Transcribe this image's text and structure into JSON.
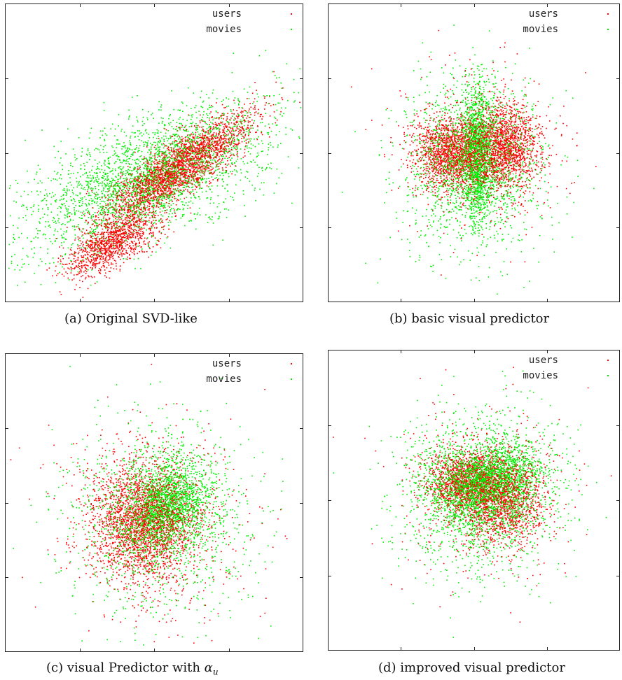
{
  "chart_data": [
    {
      "type": "scatter",
      "caption": "(a) Original SVD-like",
      "legend": {
        "position": "top-right",
        "entries": [
          "users",
          "movies"
        ]
      },
      "series": [
        {
          "name": "users",
          "color": "#ff0000",
          "clusters": [
            {
              "cx": 0.58,
              "cy": 0.55,
              "sx": 0.15,
              "sy": 0.04,
              "rot": -0.62,
              "n": 2600
            },
            {
              "cx": 0.36,
              "cy": 0.8,
              "sx": 0.09,
              "sy": 0.035,
              "rot": -0.55,
              "n": 1100
            }
          ]
        },
        {
          "name": "movies",
          "color": "#00ee00",
          "clusters": [
            {
              "cx": 0.48,
              "cy": 0.58,
              "sx": 0.22,
              "sy": 0.09,
              "rot": -0.45,
              "n": 2900
            }
          ]
        }
      ]
    },
    {
      "type": "scatter",
      "caption": "(b) basic visual predictor",
      "legend": {
        "position": "top-right",
        "entries": [
          "users",
          "movies"
        ]
      },
      "series": [
        {
          "name": "users",
          "color": "#ff0000",
          "clusters": [
            {
              "cx": 0.42,
              "cy": 0.5,
              "sx": 0.06,
              "sy": 0.06,
              "rot": 0,
              "n": 1500
            },
            {
              "cx": 0.6,
              "cy": 0.48,
              "sx": 0.06,
              "sy": 0.07,
              "rot": 0,
              "n": 1500
            },
            {
              "cx": 0.5,
              "cy": 0.5,
              "sx": 0.15,
              "sy": 0.15,
              "rot": 0,
              "n": 400
            }
          ]
        },
        {
          "name": "movies",
          "color": "#00ee00",
          "clusters": [
            {
              "cx": 0.51,
              "cy": 0.5,
              "sx": 0.025,
              "sy": 0.11,
              "rot": 0,
              "n": 1400
            },
            {
              "cx": 0.5,
              "cy": 0.53,
              "sx": 0.12,
              "sy": 0.14,
              "rot": 0,
              "n": 1700
            }
          ]
        }
      ]
    },
    {
      "type": "scatter",
      "caption": "(c) visual Predictor with ",
      "caption_symbol": "α",
      "caption_subscript": "u",
      "legend": {
        "position": "top-right",
        "entries": [
          "users",
          "movies"
        ]
      },
      "series": [
        {
          "name": "users",
          "color": "#ff0000",
          "clusters": [
            {
              "cx": 0.46,
              "cy": 0.56,
              "sx": 0.085,
              "sy": 0.1,
              "rot": 0,
              "n": 2200
            },
            {
              "cx": 0.5,
              "cy": 0.57,
              "sx": 0.17,
              "sy": 0.17,
              "rot": 0,
              "n": 600
            }
          ]
        },
        {
          "name": "movies",
          "color": "#00ee00",
          "clusters": [
            {
              "cx": 0.54,
              "cy": 0.51,
              "sx": 0.06,
              "sy": 0.08,
              "rot": 0.6,
              "n": 1700
            },
            {
              "cx": 0.52,
              "cy": 0.55,
              "sx": 0.15,
              "sy": 0.16,
              "rot": 0,
              "n": 1300
            }
          ]
        }
      ]
    },
    {
      "type": "scatter",
      "caption": "(d) improved visual predictor",
      "legend": {
        "position": "top-right",
        "entries": [
          "users",
          "movies"
        ]
      },
      "series": [
        {
          "name": "users",
          "color": "#ff0000",
          "clusters": [
            {
              "cx": 0.47,
              "cy": 0.44,
              "sx": 0.06,
              "sy": 0.05,
              "rot": 0,
              "n": 1200
            },
            {
              "cx": 0.6,
              "cy": 0.5,
              "sx": 0.07,
              "sy": 0.07,
              "rot": 0,
              "n": 1200
            },
            {
              "cx": 0.52,
              "cy": 0.48,
              "sx": 0.15,
              "sy": 0.15,
              "rot": 0,
              "n": 500
            }
          ]
        },
        {
          "name": "movies",
          "color": "#00ee00",
          "clusters": [
            {
              "cx": 0.55,
              "cy": 0.44,
              "sx": 0.09,
              "sy": 0.06,
              "rot": -0.3,
              "n": 1800
            },
            {
              "cx": 0.52,
              "cy": 0.47,
              "sx": 0.14,
              "sy": 0.13,
              "rot": 0,
              "n": 1800
            }
          ]
        }
      ]
    }
  ]
}
